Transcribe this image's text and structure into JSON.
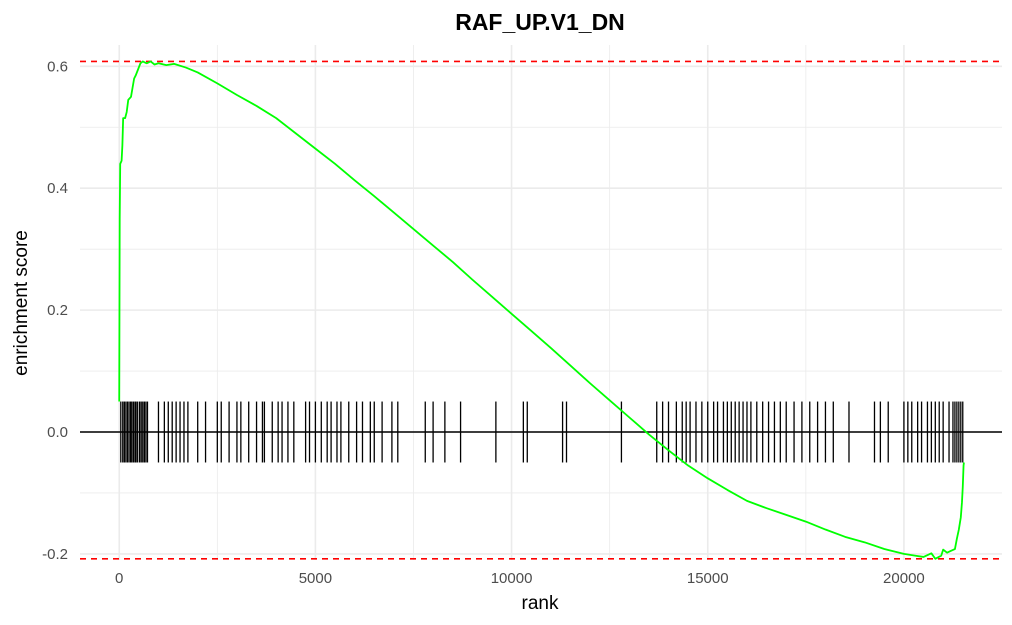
{
  "chart_data": {
    "type": "line",
    "title": "RAF_UP.V1_DN",
    "xlabel": "rank",
    "ylabel": "enrichment score",
    "xlim": [
      -1000,
      22500
    ],
    "ylim": [
      -0.21,
      0.635
    ],
    "x_ticks": [
      0,
      5000,
      10000,
      15000,
      20000
    ],
    "x_tick_labels": [
      "0",
      "5000",
      "10000",
      "15000",
      "20000"
    ],
    "y_ticks": [
      -0.2,
      0.0,
      0.2,
      0.4,
      0.6
    ],
    "y_tick_labels": [
      "-0.2",
      "0.0",
      "0.2",
      "0.4",
      "0.6"
    ],
    "grid": true,
    "colors": {
      "curve": "#00ff00",
      "dashed": "#ff0000",
      "hits": "#000000",
      "grid": "#ebebeb"
    },
    "series": [
      {
        "points": [
          [
            0,
            0.05
          ],
          [
            12,
            0.35
          ],
          [
            25,
            0.44
          ],
          [
            60,
            0.445
          ],
          [
            80,
            0.47
          ],
          [
            100,
            0.515
          ],
          [
            150,
            0.515
          ],
          [
            190,
            0.525
          ],
          [
            230,
            0.545
          ],
          [
            300,
            0.55
          ],
          [
            340,
            0.565
          ],
          [
            380,
            0.58
          ],
          [
            420,
            0.585
          ],
          [
            480,
            0.595
          ],
          [
            540,
            0.605
          ],
          [
            600,
            0.608
          ],
          [
            700,
            0.605
          ],
          [
            800,
            0.608
          ],
          [
            900,
            0.603
          ],
          [
            1000,
            0.605
          ],
          [
            1200,
            0.602
          ],
          [
            1400,
            0.604
          ],
          [
            1700,
            0.598
          ],
          [
            2000,
            0.59
          ],
          [
            2500,
            0.572
          ],
          [
            3000,
            0.553
          ],
          [
            3500,
            0.535
          ],
          [
            4000,
            0.515
          ],
          [
            4500,
            0.49
          ],
          [
            5000,
            0.465
          ],
          [
            5500,
            0.44
          ],
          [
            6000,
            0.413
          ],
          [
            6500,
            0.387
          ],
          [
            7000,
            0.36
          ],
          [
            7500,
            0.333
          ],
          [
            8000,
            0.306
          ],
          [
            8500,
            0.279
          ],
          [
            9000,
            0.25
          ],
          [
            9500,
            0.222
          ],
          [
            10000,
            0.194
          ],
          [
            10500,
            0.166
          ],
          [
            11000,
            0.138
          ],
          [
            11500,
            0.109
          ],
          [
            12000,
            0.08
          ],
          [
            12500,
            0.052
          ],
          [
            13000,
            0.024
          ],
          [
            13500,
            -0.004
          ],
          [
            14000,
            -0.03
          ],
          [
            14500,
            -0.055
          ],
          [
            15000,
            -0.076
          ],
          [
            15500,
            -0.095
          ],
          [
            16000,
            -0.113
          ],
          [
            16500,
            -0.125
          ],
          [
            17000,
            -0.136
          ],
          [
            17500,
            -0.147
          ],
          [
            18000,
            -0.16
          ],
          [
            18500,
            -0.172
          ],
          [
            19000,
            -0.181
          ],
          [
            19500,
            -0.192
          ],
          [
            20000,
            -0.2
          ],
          [
            20300,
            -0.203
          ],
          [
            20500,
            -0.205
          ],
          [
            20700,
            -0.199
          ],
          [
            20800,
            -0.208
          ],
          [
            20950,
            -0.203
          ],
          [
            21000,
            -0.193
          ],
          [
            21100,
            -0.198
          ],
          [
            21200,
            -0.195
          ],
          [
            21300,
            -0.192
          ],
          [
            21350,
            -0.175
          ],
          [
            21400,
            -0.16
          ],
          [
            21450,
            -0.14
          ],
          [
            21480,
            -0.115
          ],
          [
            21500,
            -0.09
          ],
          [
            21520,
            -0.055
          ],
          [
            21530,
            -0.05
          ]
        ]
      }
    ],
    "hits": [
      40,
      90,
      130,
      170,
      210,
      250,
      290,
      320,
      360,
      400,
      430,
      470,
      520,
      560,
      600,
      640,
      680,
      720,
      1000,
      1150,
      1250,
      1350,
      1450,
      1550,
      1650,
      1750,
      2000,
      2200,
      2500,
      2600,
      2800,
      3000,
      3100,
      3300,
      3500,
      3650,
      3700,
      3900,
      4050,
      4150,
      4300,
      4450,
      4750,
      4850,
      5000,
      5150,
      5300,
      5400,
      5550,
      5650,
      5850,
      6050,
      6200,
      6400,
      6500,
      6700,
      6950,
      7100,
      7800,
      8000,
      8300,
      8700,
      9600,
      10300,
      10400,
      11300,
      11400,
      12800,
      13700,
      13850,
      14000,
      14200,
      14350,
      14450,
      14550,
      14700,
      14850,
      15000,
      15150,
      15250,
      15400,
      15500,
      15600,
      15700,
      15800,
      15900,
      16000,
      16100,
      16250,
      16400,
      16550,
      16700,
      16850,
      17000,
      17200,
      17400,
      17600,
      17800,
      18000,
      18200,
      18600,
      19250,
      19400,
      19600,
      20000,
      20100,
      20200,
      20350,
      20450,
      20600,
      20700,
      20800,
      20900,
      21000,
      21150,
      21250,
      21300,
      21350,
      21400,
      21450,
      21500
    ],
    "hlines": [
      {
        "y": 0.608,
        "style": "dashed"
      },
      {
        "y": -0.208,
        "style": "dashed"
      },
      {
        "y": 0.0,
        "style": "solid"
      }
    ]
  }
}
